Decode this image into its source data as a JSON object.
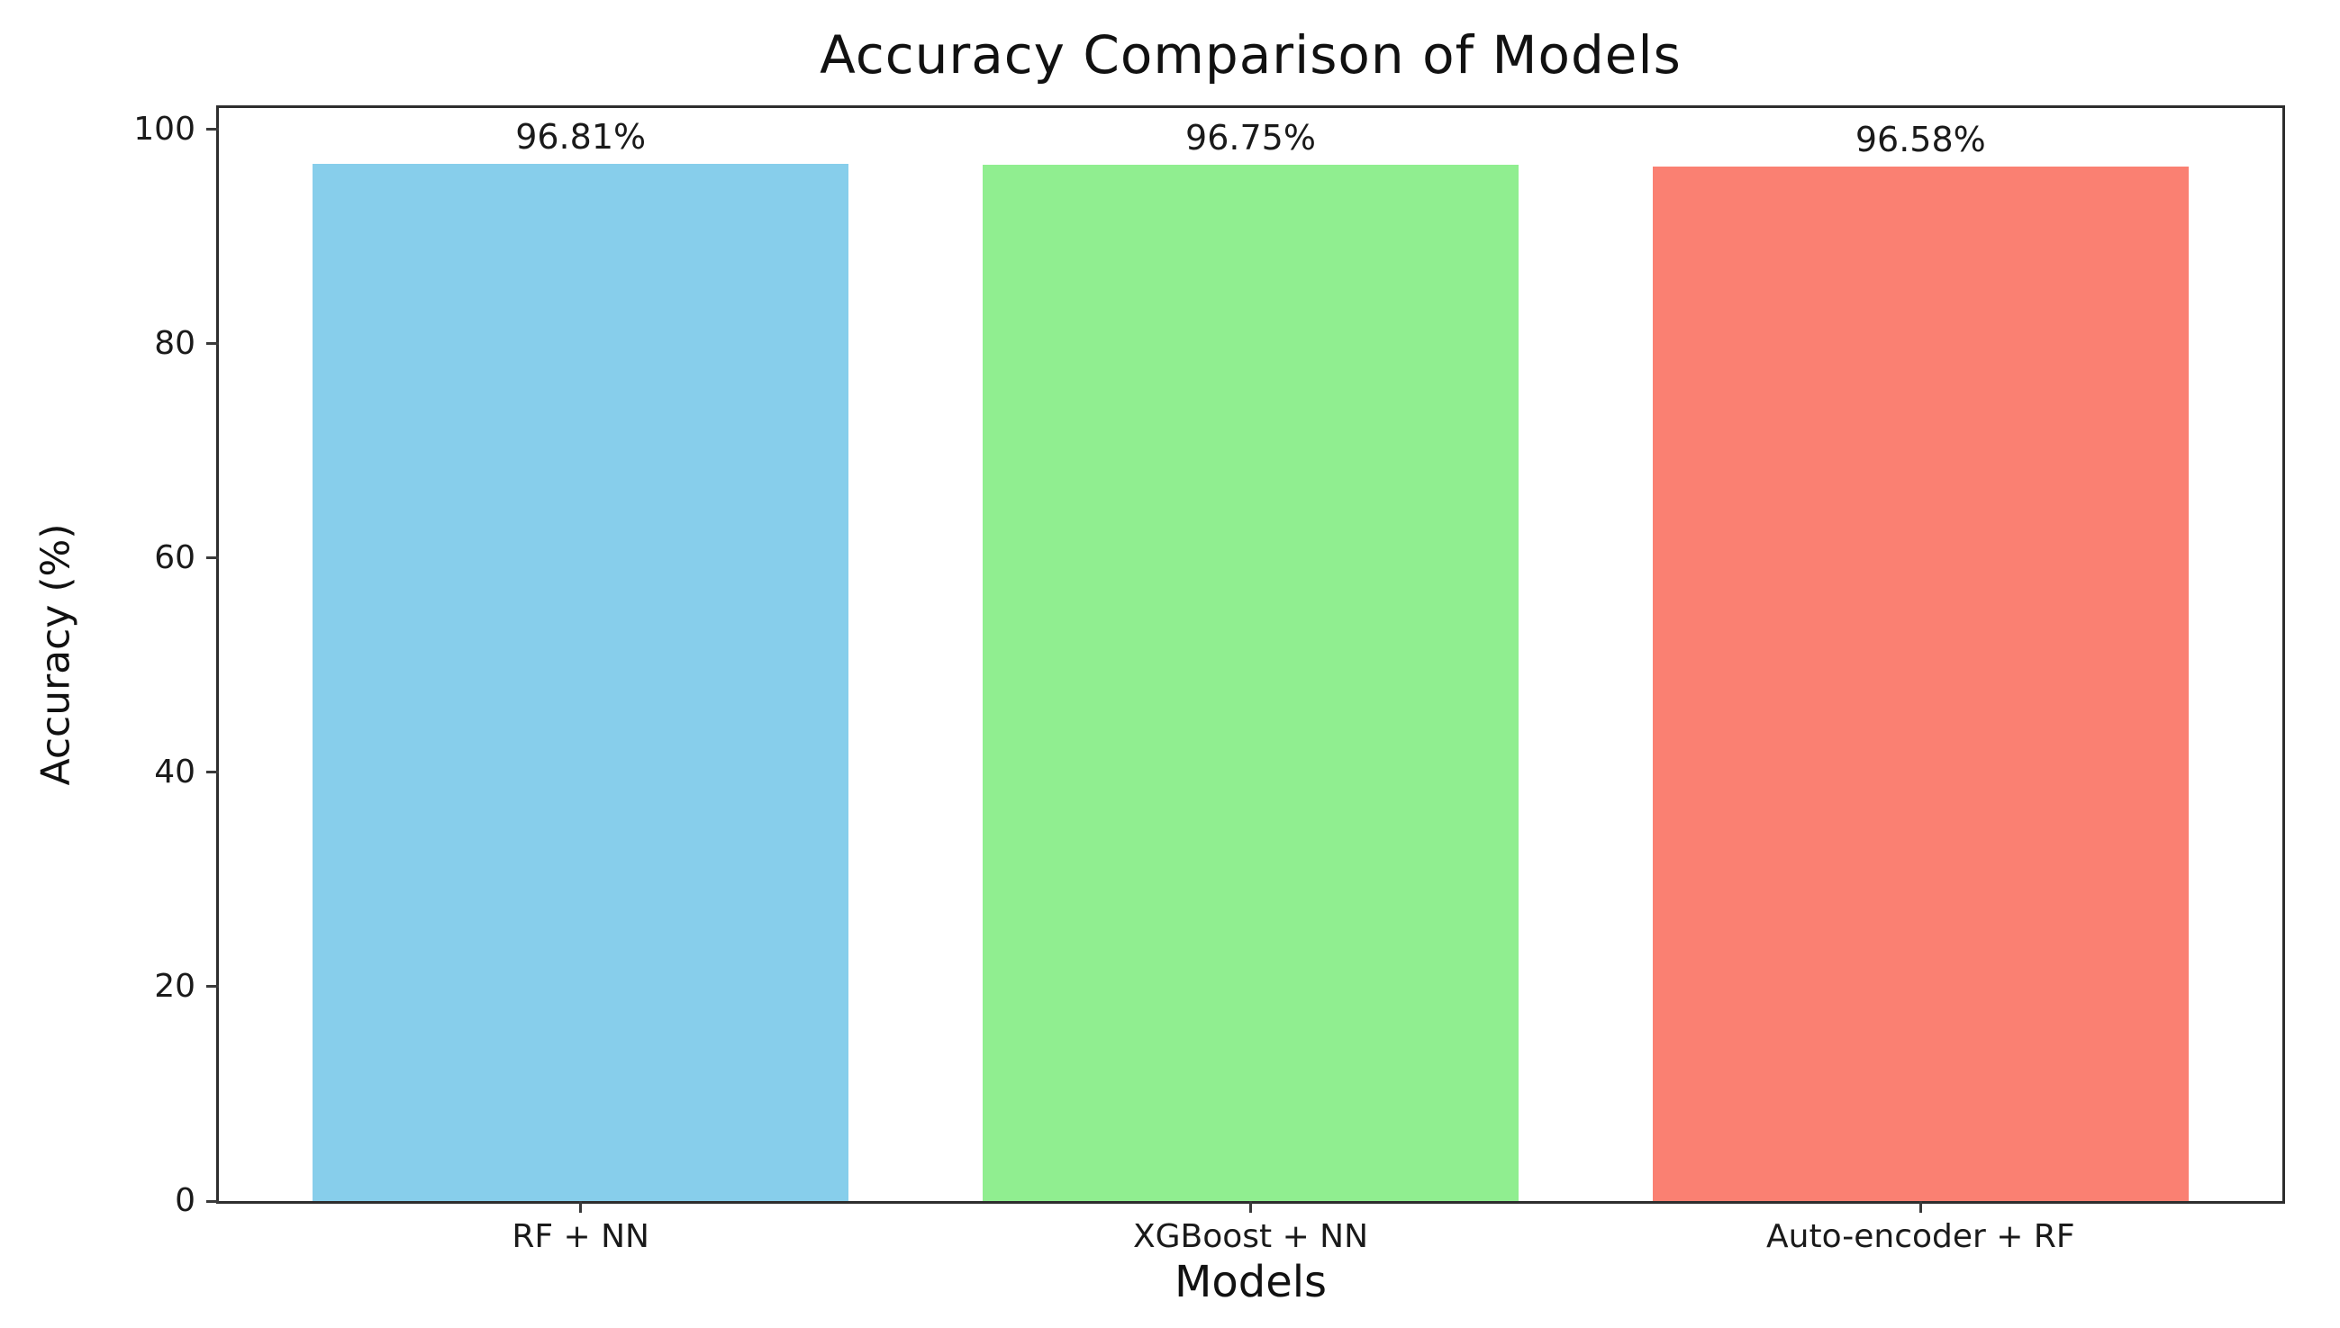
{
  "chart_data": {
    "type": "bar",
    "title": "Accuracy Comparison of Models",
    "xlabel": "Models",
    "ylabel": "Accuracy (%)",
    "categories": [
      "RF + NN",
      "XGBoost + NN",
      "Auto-encoder + RF"
    ],
    "values": [
      96.81,
      96.75,
      96.58
    ],
    "value_labels": [
      "96.81%",
      "96.75%",
      "96.58%"
    ],
    "bar_colors": [
      "#87CEEB",
      "#90EE90",
      "#FA8072"
    ],
    "yticks": [
      0,
      20,
      40,
      60,
      80,
      100
    ],
    "ylim": [
      0,
      102
    ],
    "grid": false,
    "legend_position": "none"
  },
  "colors": {
    "background": "#ffffff",
    "spine": "#2e2e2e",
    "text": "#1a1a1a"
  }
}
